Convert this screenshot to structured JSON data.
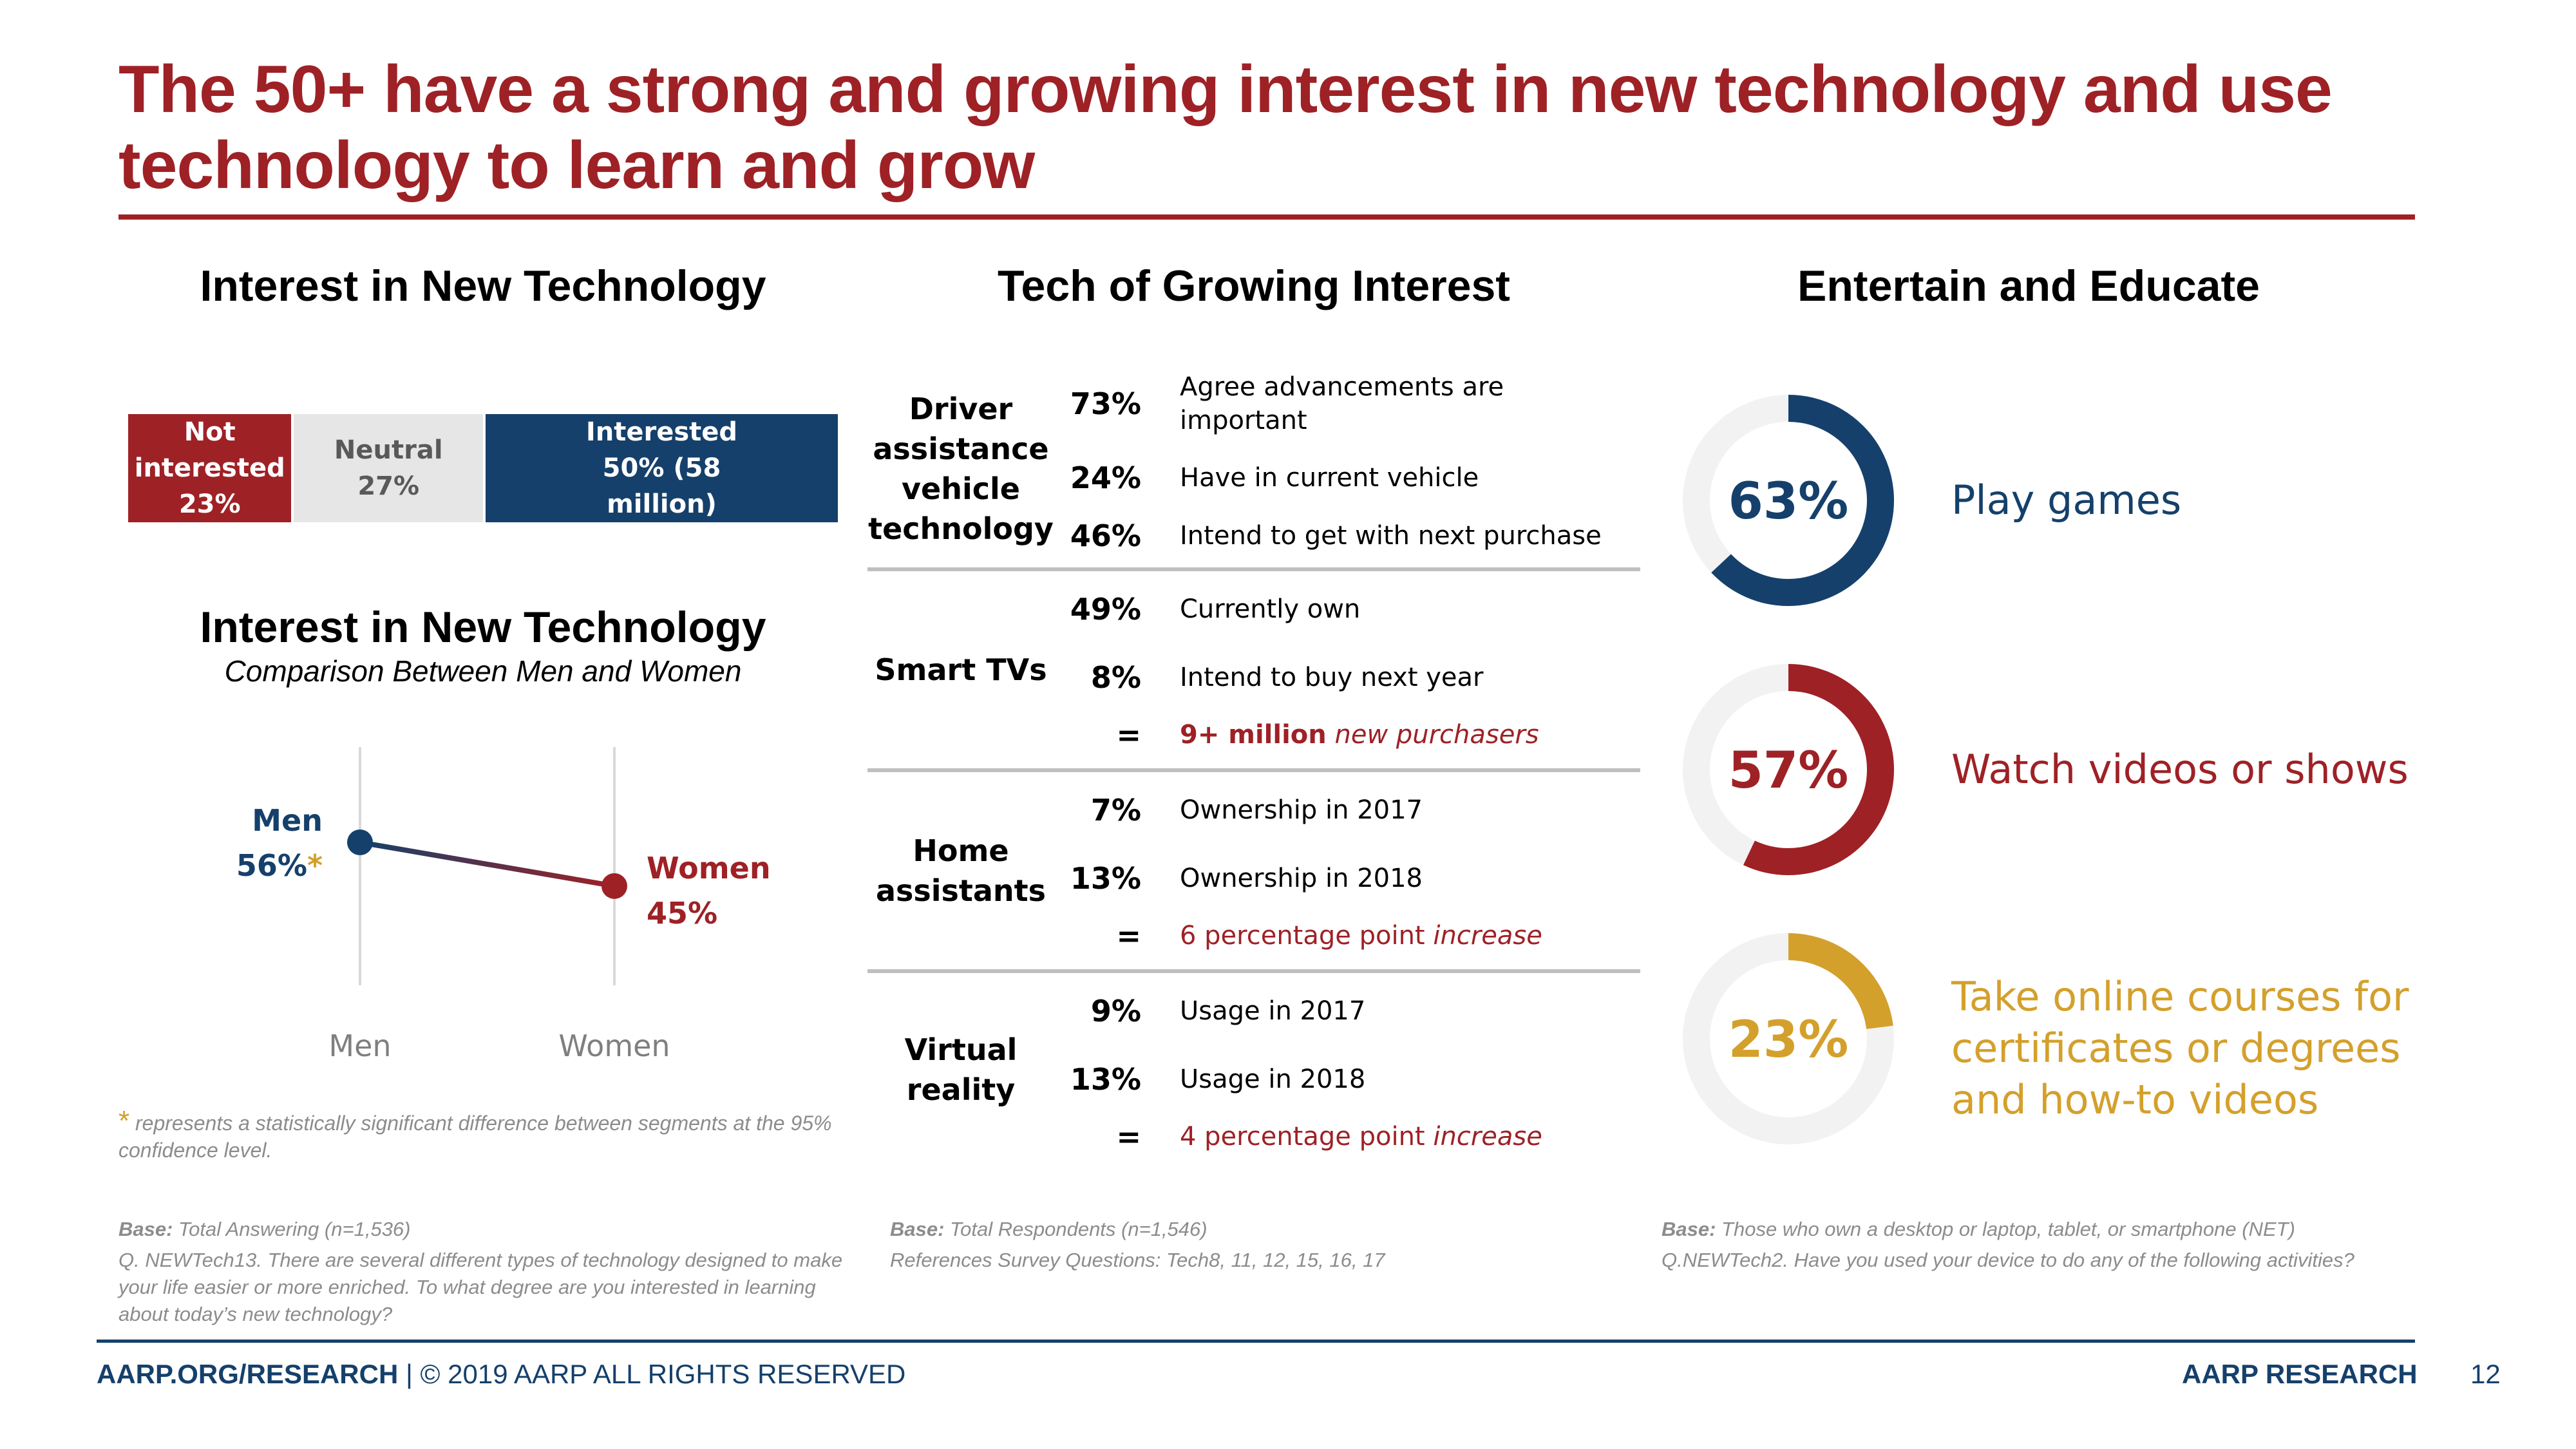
{
  "title": "The 50+ have a strong and growing interest in new technology and use technology to learn and grow",
  "colors": {
    "accent_red": "#9e2126",
    "navy": "#15406b",
    "gold": "#d4a02c",
    "neutral_gray": "#e6e6e6",
    "track_gray": "#f2f2f2"
  },
  "sections": {
    "left_heading": "Interest in New Technology",
    "middle_heading": "Tech of Growing Interest",
    "right_heading": "Entertain and Educate"
  },
  "chart_data": [
    {
      "type": "bar",
      "orientation": "horizontal-stacked",
      "title": "Interest in New Technology",
      "categories": [
        "Not interested",
        "Neutral",
        "Interested"
      ],
      "values": [
        23,
        27,
        50
      ],
      "labels": [
        [
          "Not",
          "interested",
          "23%"
        ],
        [
          "Neutral",
          "27%"
        ],
        [
          "Interested",
          "50% (58",
          "million)"
        ]
      ],
      "colors": [
        "#9e2126",
        "#e6e6e6",
        "#15406b"
      ],
      "text_colors": [
        "#ffffff",
        "#595959",
        "#ffffff"
      ]
    },
    {
      "type": "line",
      "title": "Interest in New Technology",
      "subtitle": "Comparison Between Men and Women",
      "categories": [
        "Men",
        "Women"
      ],
      "values": [
        56,
        45
      ],
      "point_labels": [
        {
          "name": "Men",
          "value": "56%",
          "flag": "*"
        },
        {
          "name": "Women",
          "value": "45%"
        }
      ],
      "ylim": [
        20,
        80
      ],
      "grid": "vertical guides",
      "note_star": "*",
      "note": " represents a statistically significant difference between segments at the 95% confidence level."
    },
    {
      "type": "table",
      "title": "Tech of Growing Interest",
      "groups": [
        {
          "label": "Driver assistance vehicle technology",
          "rows": [
            {
              "value": "73%",
              "text": "Agree advancements are important"
            },
            {
              "value": "24%",
              "text": "Have in current vehicle"
            },
            {
              "value": "46%",
              "text": "Intend to get with next purchase"
            }
          ]
        },
        {
          "label": "Smart TVs",
          "rows": [
            {
              "value": "49%",
              "text": "Currently own"
            },
            {
              "value": "8%",
              "text": "Intend to buy next year"
            },
            {
              "value": "=",
              "text_bold": "9+ million",
              "text_italic": " new purchasers",
              "highlight": true
            }
          ]
        },
        {
          "label": "Home assistants",
          "rows": [
            {
              "value": "7%",
              "text": "Ownership in 2017"
            },
            {
              "value": "13%",
              "text": "Ownership in 2018"
            },
            {
              "value": "=",
              "text": "6 percentage point ",
              "text_italic": "increase",
              "highlight": true
            }
          ]
        },
        {
          "label": "Virtual reality",
          "rows": [
            {
              "value": "9%",
              "text": "Usage in 2017"
            },
            {
              "value": "13%",
              "text": "Usage in 2018"
            },
            {
              "value": "=",
              "text": "4 percentage point ",
              "text_italic": "increase",
              "highlight": true
            }
          ]
        }
      ]
    },
    {
      "type": "pie",
      "variant": "donut",
      "title": "Entertain and Educate",
      "items": [
        {
          "label": "Play games",
          "value": 63,
          "display": "63%",
          "color": "#15406b"
        },
        {
          "label": "Watch videos or shows",
          "value": 57,
          "display": "57%",
          "color": "#9e2126"
        },
        {
          "label": "Take online courses for certificates or degrees and how-to videos",
          "value": 23,
          "display": "23%",
          "color": "#d4a02c"
        }
      ],
      "track_color": "#f2f2f2"
    }
  ],
  "bases": {
    "left": {
      "label": "Base:",
      "text": " Total Answering (n=1,536)",
      "question": "Q. NEWTech13. There are several different types of technology designed to make your life easier or more enriched. To what degree are you interested in learning about today’s new technology?"
    },
    "middle": {
      "label": "Base:",
      "text": " Total Respondents (n=1,546)",
      "question": "References Survey Questions: Tech8, 11, 12, 15, 16, 17"
    },
    "right": {
      "label": "Base:",
      "text": " Those who own a desktop or laptop, tablet, or smartphone (NET)",
      "question": "Q.NEWTech2. Have you used your device to do any of the following activities?"
    }
  },
  "footer": {
    "site": "AARP.ORG/RESEARCH",
    "copyright": " | © 2019 AARP ALL RIGHTS RESERVED",
    "brand": "AARP RESEARCH",
    "page": "12"
  }
}
